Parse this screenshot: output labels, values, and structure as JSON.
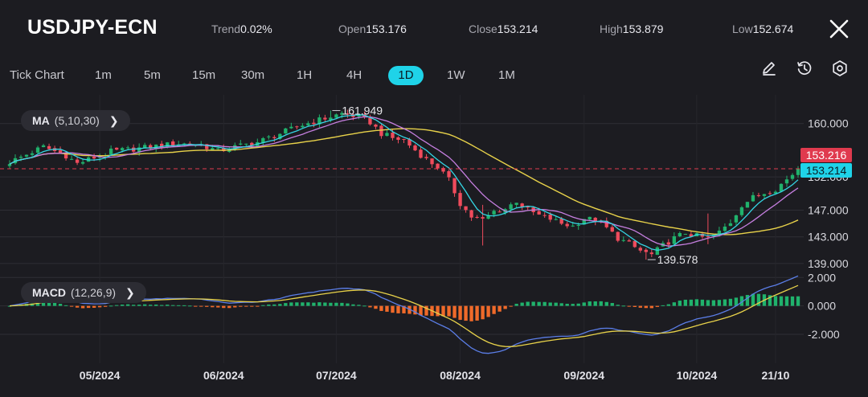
{
  "header": {
    "symbol": "USDJPY-ECN",
    "stats": [
      {
        "key": "Trend",
        "value": "0.02%"
      },
      {
        "key": "Open",
        "value": "153.176"
      },
      {
        "key": "Close",
        "value": "153.214"
      },
      {
        "key": "High",
        "value": "153.879"
      },
      {
        "key": "Low",
        "value": "152.674"
      }
    ],
    "close_icon": "close-icon"
  },
  "timeframes": {
    "items": [
      "Tick Chart",
      "1m",
      "5m",
      "15m",
      "30m",
      "1H",
      "4H",
      "1D",
      "1W",
      "1M"
    ],
    "active": "1D"
  },
  "tools": [
    "pencil-icon",
    "clock-icon",
    "settings-icon"
  ],
  "indicators": {
    "ma": {
      "name": "MA",
      "params": "(5,10,30)"
    },
    "macd": {
      "name": "MACD",
      "params": "(12,26,9)"
    }
  },
  "colors": {
    "background": "#1c1c21",
    "up": "#20b26c",
    "down": "#ef4b5c",
    "ma5": "#34d6e4",
    "ma10": "#c67fe0",
    "ma30": "#e8d24a",
    "macd_line": "#5b7ee8",
    "signal_line": "#e8d24a",
    "accent": "#1fd3e8",
    "last_price_bg": "#1fd3e8",
    "ask_price_bg": "#e03a4e"
  },
  "chart_data": [
    {
      "type": "candlestick",
      "y_ticks": [
        "160.000",
        "152.000",
        "147.000",
        "143.000",
        "139.000"
      ],
      "y_tick_values": [
        160,
        152,
        147,
        143,
        139
      ],
      "ylim": [
        138.5,
        162.5
      ],
      "x_labels": [
        "05/2024",
        "06/2024",
        "07/2024",
        "08/2024",
        "09/2024",
        "10/2024",
        "21/10"
      ],
      "x_label_index": [
        16,
        38,
        58,
        80,
        102,
        122,
        136
      ],
      "annotations": {
        "high": "161.949",
        "low": "139.578"
      },
      "price_tags": {
        "ask": "153.216",
        "last": "153.214"
      },
      "last_price": 153.214,
      "n_candles": 141,
      "close_path": [
        [
          0,
          154.2
        ],
        [
          6,
          156.5
        ],
        [
          10,
          155.2
        ],
        [
          12,
          154.0
        ],
        [
          14,
          154.6
        ],
        [
          18,
          155.8
        ],
        [
          24,
          156.4
        ],
        [
          30,
          157.0
        ],
        [
          34,
          156.8
        ],
        [
          37,
          155.9
        ],
        [
          40,
          156.5
        ],
        [
          44,
          157.2
        ],
        [
          48,
          158.5
        ],
        [
          52,
          159.8
        ],
        [
          56,
          160.8
        ],
        [
          59,
          161.5
        ],
        [
          62,
          161.0
        ],
        [
          64,
          160.2
        ],
        [
          66,
          158.5
        ],
        [
          68,
          157.8
        ],
        [
          70,
          157.5
        ],
        [
          72,
          156.0
        ],
        [
          74,
          154.6
        ],
        [
          76,
          153.5
        ],
        [
          78,
          151.5
        ],
        [
          80,
          148.0
        ],
        [
          82,
          146.0
        ],
        [
          84,
          145.5
        ],
        [
          86,
          146.8
        ],
        [
          88,
          147.2
        ],
        [
          90,
          148.4
        ],
        [
          92,
          147.0
        ],
        [
          94,
          146.2
        ],
        [
          96,
          145.7
        ],
        [
          98,
          145.0
        ],
        [
          100,
          144.6
        ],
        [
          102,
          145.8
        ],
        [
          104,
          145.5
        ],
        [
          106,
          144.3
        ],
        [
          108,
          142.8
        ],
        [
          110,
          141.9
        ],
        [
          112,
          140.9
        ],
        [
          114,
          140.3
        ],
        [
          116,
          141.7
        ],
        [
          118,
          142.8
        ],
        [
          120,
          143.6
        ],
        [
          122,
          143.1
        ],
        [
          124,
          142.8
        ],
        [
          126,
          143.7
        ],
        [
          128,
          145.2
        ],
        [
          130,
          147.8
        ],
        [
          132,
          148.9
        ],
        [
          134,
          149.6
        ],
        [
          136,
          150.2
        ],
        [
          138,
          151.6
        ],
        [
          140,
          153.214
        ]
      ],
      "spikes": [
        {
          "i": 57,
          "high": 161.949,
          "low": 160.2
        },
        {
          "i": 84,
          "high": 147.8,
          "low": 141.7
        },
        {
          "i": 113,
          "high": 141.3,
          "low": 139.578
        },
        {
          "i": 124,
          "high": 146.5,
          "low": 141.9
        }
      ]
    },
    {
      "type": "macd",
      "y_ticks": [
        "2.000",
        "0.000",
        "-2.000"
      ],
      "y_tick_values": [
        2,
        0,
        -2
      ],
      "ylim": [
        -3.7,
        2.3
      ]
    }
  ]
}
